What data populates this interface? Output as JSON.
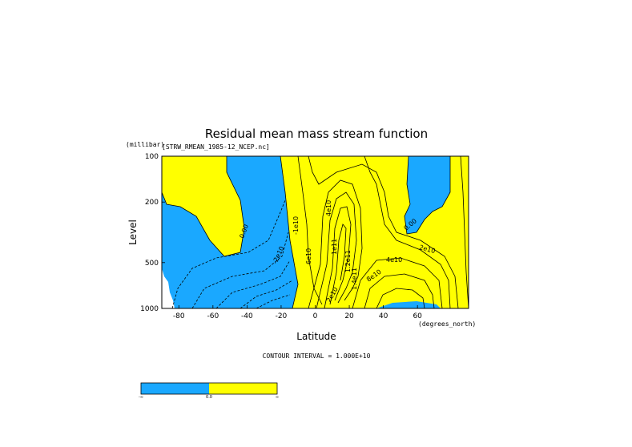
{
  "chart_data": {
    "type": "contour",
    "title": "Residual mean mass stream function",
    "subtitle": "[STRW_RMEAN_1985-12_NCEP.nc]",
    "xlabel": "Latitude",
    "xunits": "(degrees_north)",
    "ylabel": "Level",
    "yunits": "(millibar)",
    "xlim": [
      -90,
      90
    ],
    "ylim": [
      1000,
      100
    ],
    "yscale": "log",
    "x_ticks": [
      -80,
      -60,
      -40,
      -20,
      0,
      20,
      40,
      60
    ],
    "x_tick_labels": [
      "-80",
      "-60",
      "-40",
      "-20",
      "0",
      "20",
      "40",
      "60"
    ],
    "y_ticks": [
      100,
      200,
      500,
      1000
    ],
    "y_tick_labels": [
      "100",
      "200",
      "500",
      "1000"
    ],
    "contour_interval_text": "CONTOUR INTERVAL = 1.000E+10",
    "contour_labels": [
      "0.00",
      "-2e10",
      "-1e10",
      "4e10",
      "6e10",
      "1e11",
      "1.2e11",
      "1.4e11",
      "8e10",
      "2e10",
      "4e10",
      "0.00",
      "2e10",
      "0.00"
    ],
    "colors": {
      "negative": "#1aa8ff",
      "positive": "#ffff00"
    },
    "colorbar": {
      "labels": [
        "-∞",
        "0.0",
        "∞"
      ],
      "colors": [
        "#1aa8ff",
        "#ffff00"
      ]
    }
  }
}
